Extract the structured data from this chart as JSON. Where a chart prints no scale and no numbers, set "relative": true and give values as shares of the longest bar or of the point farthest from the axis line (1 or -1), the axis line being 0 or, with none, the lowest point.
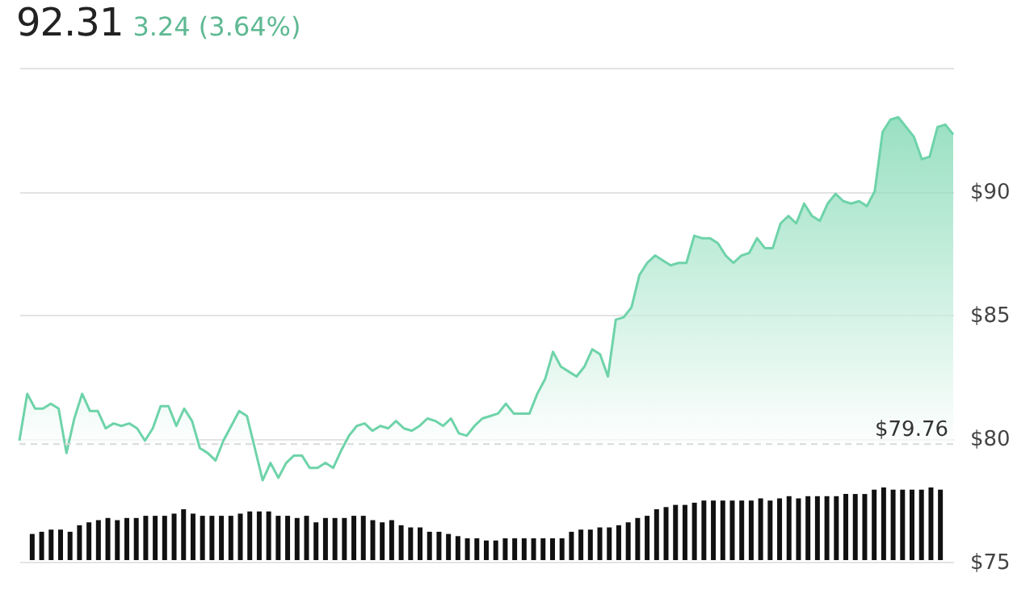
{
  "chart_data": [
    {
      "type": "area",
      "title": "92.31",
      "subtitle": "3.24 (3.64%)",
      "categories": [
        null,
        null,
        null,
        null,
        null,
        null,
        null,
        null,
        null,
        null,
        null,
        null,
        null,
        null,
        null,
        null,
        null,
        null,
        null,
        null,
        null,
        null,
        null,
        null,
        null,
        null,
        null,
        null,
        null,
        null,
        null,
        null,
        null,
        null,
        null,
        null,
        null,
        null,
        null,
        null,
        null,
        null,
        null,
        null,
        null,
        null,
        null,
        null,
        null,
        null,
        null,
        null,
        null,
        null,
        null,
        null,
        null,
        null,
        null,
        null,
        null,
        null,
        null,
        null,
        null,
        null,
        null,
        null,
        null,
        null,
        null,
        null,
        null,
        null,
        null,
        null,
        null,
        null,
        null,
        null,
        null,
        null,
        null,
        null,
        null,
        null,
        null,
        null,
        null,
        null,
        null,
        null,
        null,
        null,
        null,
        null,
        null,
        null,
        null,
        null,
        null,
        null,
        null,
        null,
        null,
        null,
        null,
        null,
        null,
        null,
        null,
        null,
        null,
        null,
        null,
        null,
        null,
        null,
        null,
        null
      ],
      "ylim": [
        75,
        95
      ],
      "yticks": [
        {
          "value": 75,
          "label": "$75"
        },
        {
          "value": 80,
          "label": "$80"
        },
        {
          "value": 85,
          "label": "$85"
        },
        {
          "value": 90,
          "label": "$90"
        },
        {
          "value": 95,
          "label": null
        }
      ],
      "tick_labels": "y",
      "grid": "y",
      "ref_lines": [
        {
          "axis": "y",
          "value": 79.76,
          "label": "$79.76",
          "color": "#d9d9d9",
          "line_style": "dashed"
        }
      ],
      "series": [
        {
          "color": "#6ed3a9",
          "values": [
            79.9,
            81.8,
            81.2,
            81.2,
            81.4,
            81.2,
            79.4,
            80.8,
            81.8,
            81.1,
            81.1,
            80.4,
            80.6,
            80.5,
            80.6,
            80.4,
            79.9,
            80.4,
            81.3,
            81.3,
            80.5,
            81.2,
            80.7,
            79.6,
            79.4,
            79.1,
            79.9,
            80.5,
            81.1,
            80.9,
            79.6,
            78.3,
            79.0,
            78.4,
            79.0,
            79.3,
            79.3,
            78.8,
            78.8,
            79.0,
            78.8,
            79.5,
            80.1,
            80.5,
            80.6,
            80.3,
            80.5,
            80.4,
            80.7,
            80.4,
            80.3,
            80.5,
            80.8,
            80.7,
            80.5,
            80.8,
            80.2,
            80.1,
            80.5,
            80.8,
            80.9,
            81.0,
            81.4,
            81.0,
            81.0,
            81.0,
            81.8,
            82.4,
            83.5,
            82.9,
            82.7,
            82.5,
            82.9,
            83.6,
            83.4,
            82.5,
            84.8,
            84.9,
            85.3,
            86.6,
            87.1,
            87.4,
            87.2,
            87.0,
            87.1,
            87.1,
            88.2,
            88.1,
            88.1,
            87.9,
            87.4,
            87.1,
            87.4,
            87.5,
            88.1,
            87.7,
            87.7,
            88.7,
            89.0,
            88.7,
            89.5,
            89.0,
            88.8,
            89.5,
            89.9,
            89.6,
            89.5,
            89.6,
            89.4,
            90.0,
            92.4,
            92.9,
            93.0,
            92.6,
            92.2,
            91.3,
            91.4,
            92.6,
            92.7,
            92.3
          ]
        }
      ]
    },
    {
      "type": "bar",
      "relative": true,
      "tick_labels": false,
      "categories": [
        null,
        null,
        null,
        null,
        null,
        null,
        null,
        null,
        null,
        null,
        null,
        null,
        null,
        null,
        null,
        null,
        null,
        null,
        null,
        null,
        null,
        null,
        null,
        null,
        null,
        null,
        null,
        null,
        null,
        null,
        null,
        null,
        null,
        null,
        null,
        null,
        null,
        null,
        null,
        null,
        null,
        null,
        null,
        null,
        null,
        null,
        null,
        null,
        null,
        null,
        null,
        null,
        null,
        null,
        null,
        null,
        null,
        null,
        null,
        null,
        null,
        null,
        null,
        null,
        null,
        null,
        null,
        null,
        null,
        null,
        null,
        null,
        null,
        null,
        null,
        null,
        null,
        null,
        null,
        null,
        null,
        null,
        null,
        null,
        null,
        null,
        null,
        null,
        null,
        null,
        null,
        null,
        null,
        null,
        null,
        null,
        null
      ],
      "series": [
        {
          "color": "#111111",
          "values": [
            0.36,
            0.39,
            0.42,
            0.42,
            0.39,
            0.48,
            0.52,
            0.55,
            0.58,
            0.55,
            0.58,
            0.58,
            0.61,
            0.61,
            0.61,
            0.64,
            0.7,
            0.64,
            0.61,
            0.61,
            0.61,
            0.61,
            0.64,
            0.67,
            0.67,
            0.67,
            0.61,
            0.61,
            0.58,
            0.61,
            0.52,
            0.58,
            0.58,
            0.58,
            0.61,
            0.61,
            0.55,
            0.52,
            0.55,
            0.48,
            0.45,
            0.45,
            0.39,
            0.39,
            0.36,
            0.33,
            0.3,
            0.3,
            0.27,
            0.27,
            0.3,
            0.3,
            0.3,
            0.3,
            0.3,
            0.3,
            0.3,
            0.39,
            0.42,
            0.42,
            0.45,
            0.45,
            0.48,
            0.52,
            0.58,
            0.61,
            0.7,
            0.73,
            0.76,
            0.76,
            0.79,
            0.82,
            0.82,
            0.82,
            0.82,
            0.82,
            0.82,
            0.85,
            0.82,
            0.85,
            0.88,
            0.85,
            0.88,
            0.88,
            0.88,
            0.88,
            0.91,
            0.91,
            0.91,
            0.97,
            1,
            0.97,
            0.97,
            0.97,
            0.97,
            1,
            0.97
          ]
        }
      ]
    }
  ]
}
